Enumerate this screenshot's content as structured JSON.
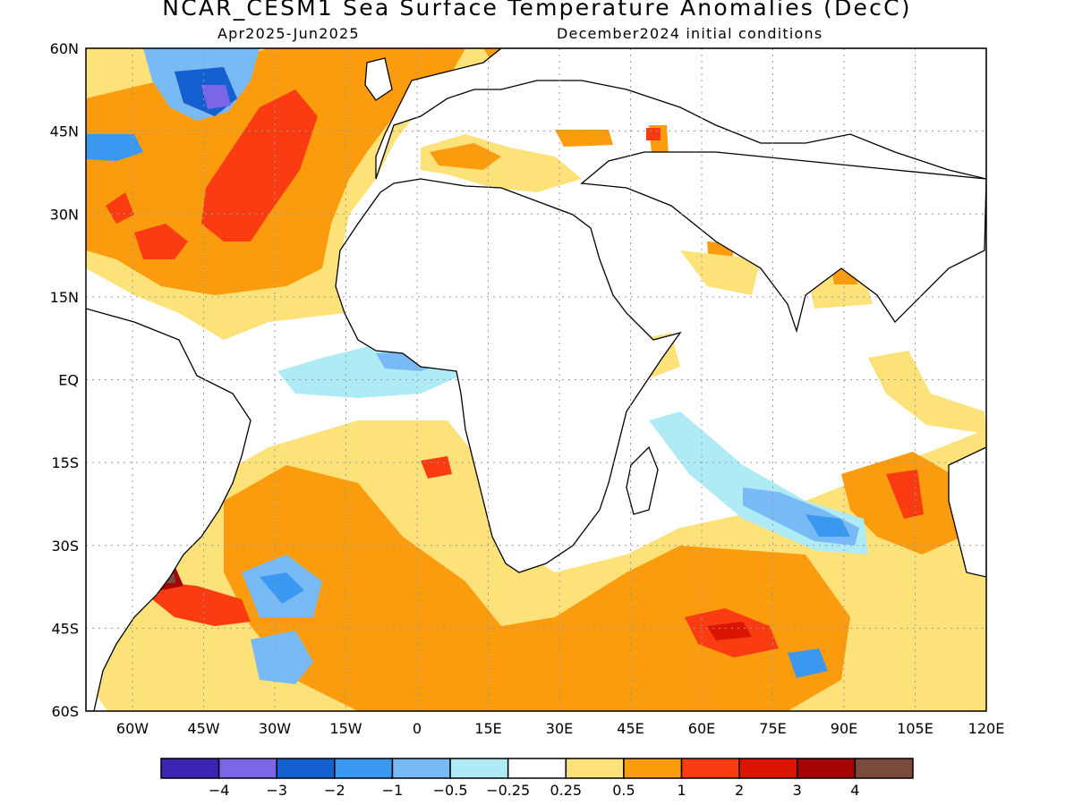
{
  "title": "NCAR_CESM1 Sea Surface Temperature Anomalies (DecC)",
  "subtitle_left": "Apr2025-Jun2025",
  "subtitle_right": "December2024 initial conditions",
  "axes": {
    "lat_labels": [
      "60N",
      "45N",
      "30N",
      "15N",
      "EQ",
      "15S",
      "30S",
      "45S",
      "60S"
    ],
    "lon_labels": [
      "60W",
      "45W",
      "30W",
      "15W",
      "0",
      "15E",
      "30E",
      "45E",
      "60E",
      "75E",
      "90E",
      "105E",
      "120E"
    ]
  },
  "legend": {
    "colors": [
      "#3a25b5",
      "#7c66e8",
      "#1560d0",
      "#3a98f0",
      "#78baf5",
      "#aeebf5",
      "#ffffff",
      "#fde27a",
      "#fb9c0e",
      "#fb3c12",
      "#dc1404",
      "#a50404",
      "#7a4a3c"
    ],
    "tick_labels": [
      "−4",
      "−3",
      "−2",
      "−1",
      "−0.5",
      "−0.25",
      "0.25",
      "0.5",
      "1",
      "2",
      "3",
      "4"
    ]
  },
  "colors": {
    "land_outline": "#000000",
    "grid": "#9a9a9a"
  }
}
